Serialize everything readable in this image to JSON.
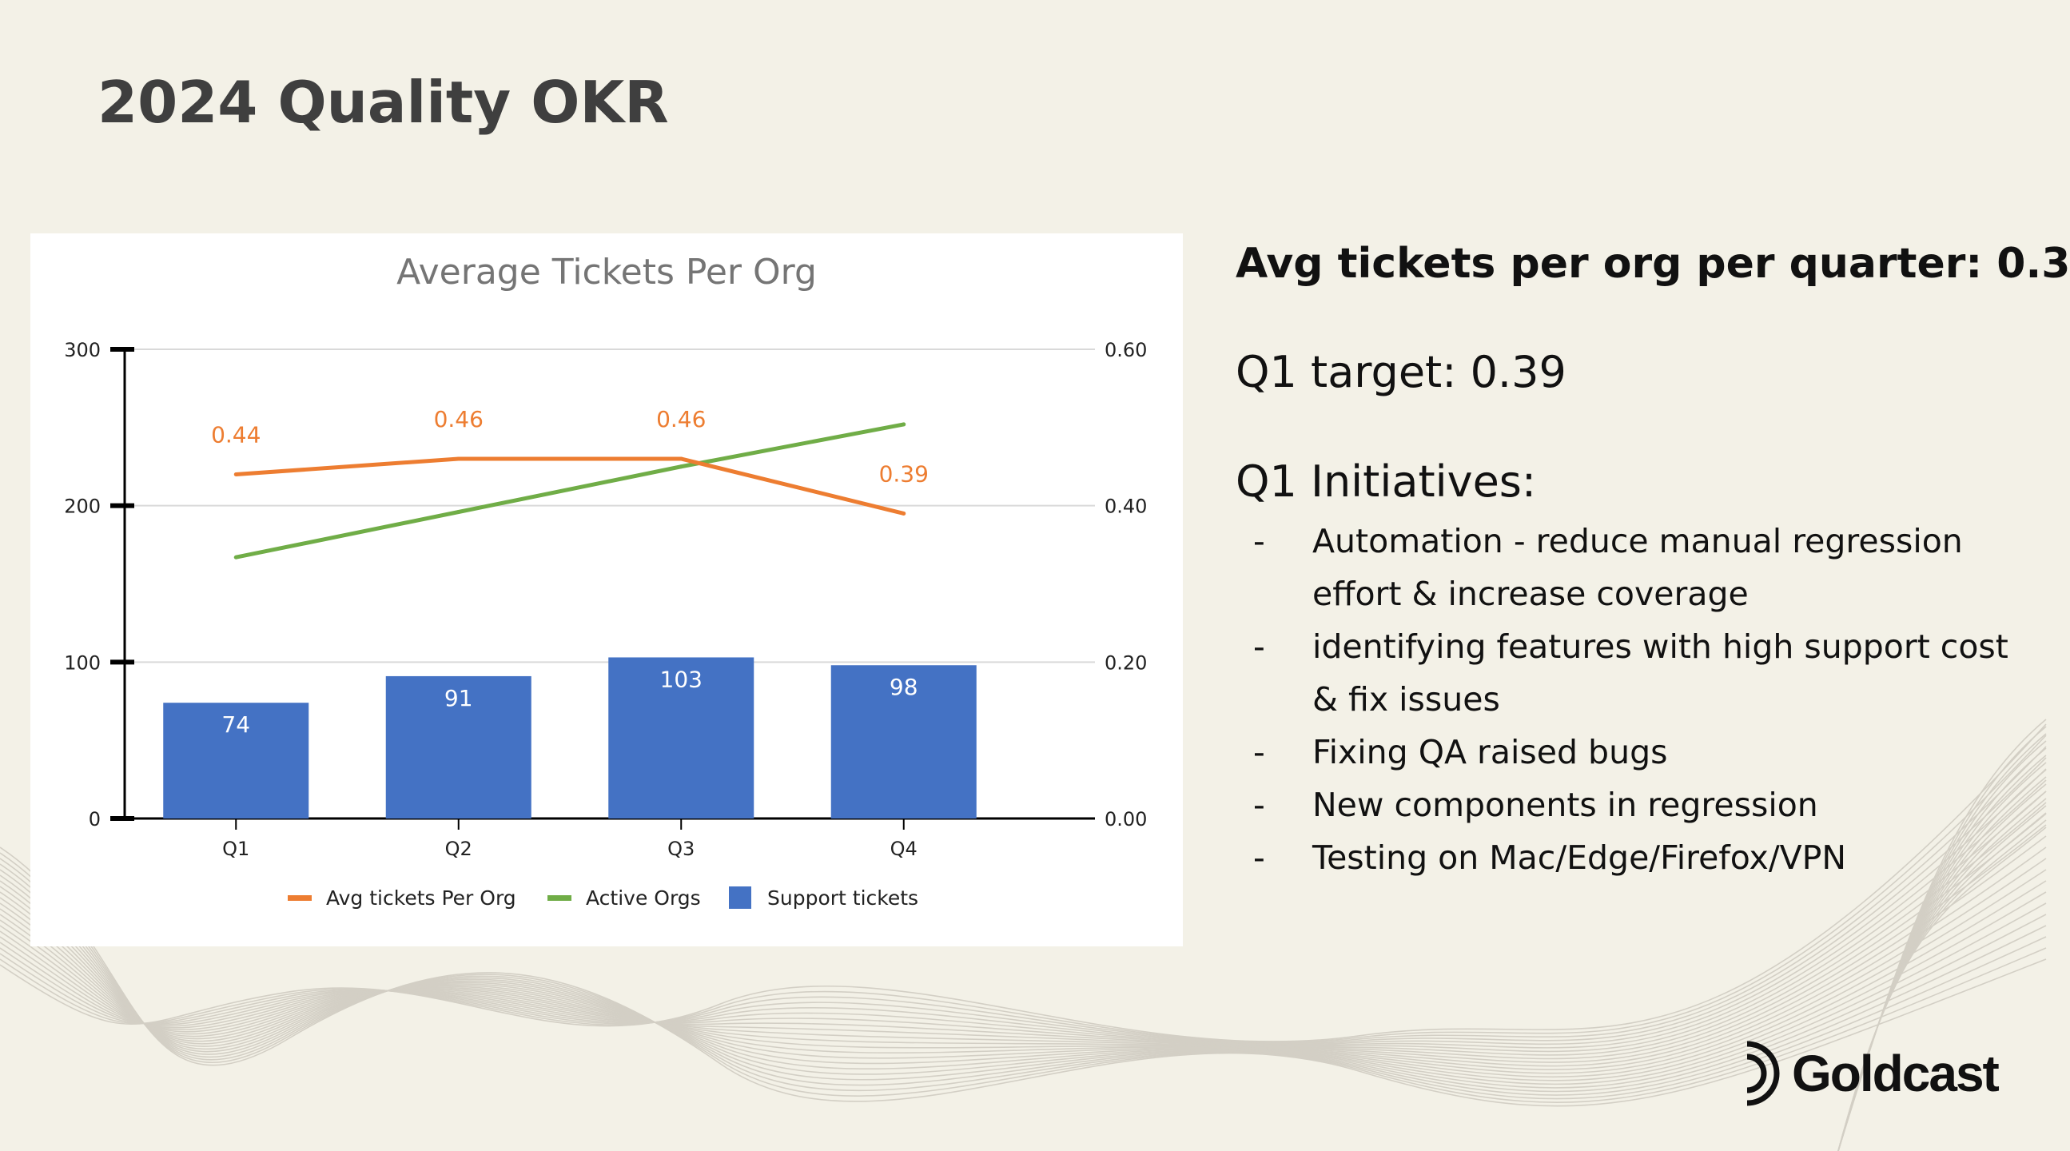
{
  "slide": {
    "title": "2024 Quality OKR"
  },
  "summary": {
    "avg_text": "Avg tickets per org per quarter: 0.3",
    "target_text": "Q1 target: 0.39",
    "initiatives_heading": "Q1 Initiatives:",
    "bullet_marker": "-",
    "initiatives": [
      "Automation - reduce manual regression effort & increase coverage",
      "identifying features with high support cost & fix issues",
      "Fixing QA raised bugs",
      "New components in regression",
      "Testing on Mac/Edge/Firefox/VPN"
    ]
  },
  "logo": {
    "text": "Goldcast",
    "icon": "goldcast-logo-icon"
  },
  "colors": {
    "bar": "#4472c4",
    "avg_line": "#ed7d31",
    "orgs_line": "#70ad47",
    "title_gray": "#757575"
  },
  "chart_data": {
    "type": "bar",
    "title": "Average Tickets Per Org",
    "categories": [
      "Q1",
      "Q2",
      "Q3",
      "Q4"
    ],
    "left_axis": {
      "range": [
        0,
        300
      ],
      "ticks": [
        "0",
        "100",
        "200",
        "300"
      ]
    },
    "right_axis": {
      "range": [
        0,
        0.6
      ],
      "ticks": [
        "0.00",
        "0.20",
        "0.40",
        "0.60"
      ]
    },
    "series": [
      {
        "name": "Support tickets",
        "type": "bar",
        "axis": "left",
        "values": [
          74,
          91,
          103,
          98
        ],
        "labels": [
          "74",
          "91",
          "103",
          "98"
        ]
      },
      {
        "name": "Avg tickets Per Org",
        "type": "line",
        "axis": "right",
        "values": [
          0.44,
          0.46,
          0.46,
          0.39
        ],
        "labels": [
          "0.44",
          "0.46",
          "0.46",
          "0.39"
        ]
      },
      {
        "name": "Active Orgs",
        "type": "line",
        "axis": "left",
        "values": [
          167,
          196,
          225,
          252
        ]
      }
    ],
    "legend": [
      "Avg tickets Per Org",
      "Active Orgs",
      "Support tickets"
    ],
    "legend_position": "bottom",
    "grid": true
  }
}
